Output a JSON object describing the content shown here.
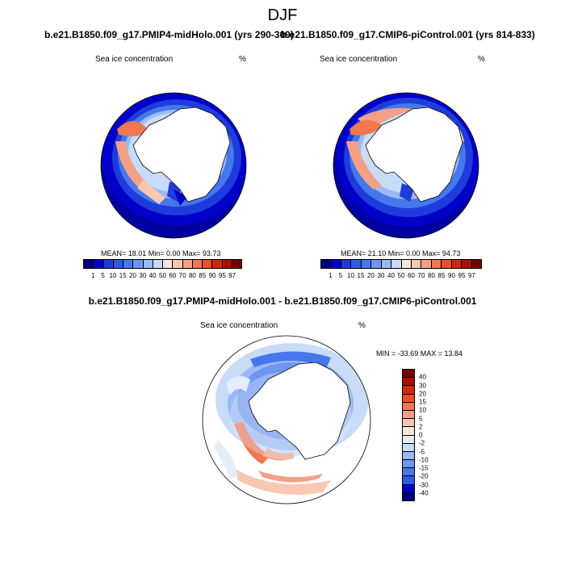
{
  "title": "DJF",
  "panel_left": {
    "subtitle": "b.e21.B1850.f09_g17.PMIP4-midHolo.001 (yrs 290-309)",
    "var_name": "Sea ice concentration",
    "units": "%",
    "stats": "MEAN=  18.01  Min=   0.00  Max=  93.73"
  },
  "panel_right": {
    "subtitle": "b.e21.B1850.f09_g17.CMIP6-piControl.001 (yrs 814-833)",
    "var_name": "Sea ice concentration",
    "units": "%",
    "stats": "MEAN=  21.10  Min=   0.00  Max=  94.73"
  },
  "panel_diff": {
    "title": "b.e21.B1850.f09_g17.PMIP4-midHolo.001 - b.e21.B1850.f09_g17.CMIP6-piControl.001",
    "var_name": "Sea ice concentration",
    "units": "%",
    "stats": "MIN = -33.69 MAX =  13.84"
  },
  "colorbar_abs": {
    "labels": [
      "1",
      "5",
      "10",
      "15",
      "20",
      "30",
      "40",
      "50",
      "60",
      "70",
      "80",
      "85",
      "90",
      "95",
      "97"
    ],
    "colors": [
      "#00007f",
      "#0000c8",
      "#1e3cdc",
      "#2d5ae6",
      "#4678ec",
      "#6e96f0",
      "#9bb9f4",
      "#c8dcf8",
      "#fbe6de",
      "#f8c8b4",
      "#f4a087",
      "#f07850",
      "#e8502a",
      "#d2280f",
      "#aa0f05",
      "#780000"
    ]
  },
  "colorbar_diff": {
    "labels": [
      "40",
      "30",
      "20",
      "15",
      "10",
      "5",
      "2",
      "0",
      "-2",
      "-5",
      "-10",
      "-15",
      "-20",
      "-30",
      "-40"
    ],
    "colors": [
      "#780000",
      "#aa0f05",
      "#d2280f",
      "#e8502a",
      "#f07850",
      "#f4a087",
      "#f8c8b4",
      "#fbe6de",
      "#e4eefa",
      "#c8dcf8",
      "#9bb9f4",
      "#6e96f0",
      "#4678ec",
      "#2d5ae6",
      "#0000c8",
      "#00007f"
    ]
  }
}
